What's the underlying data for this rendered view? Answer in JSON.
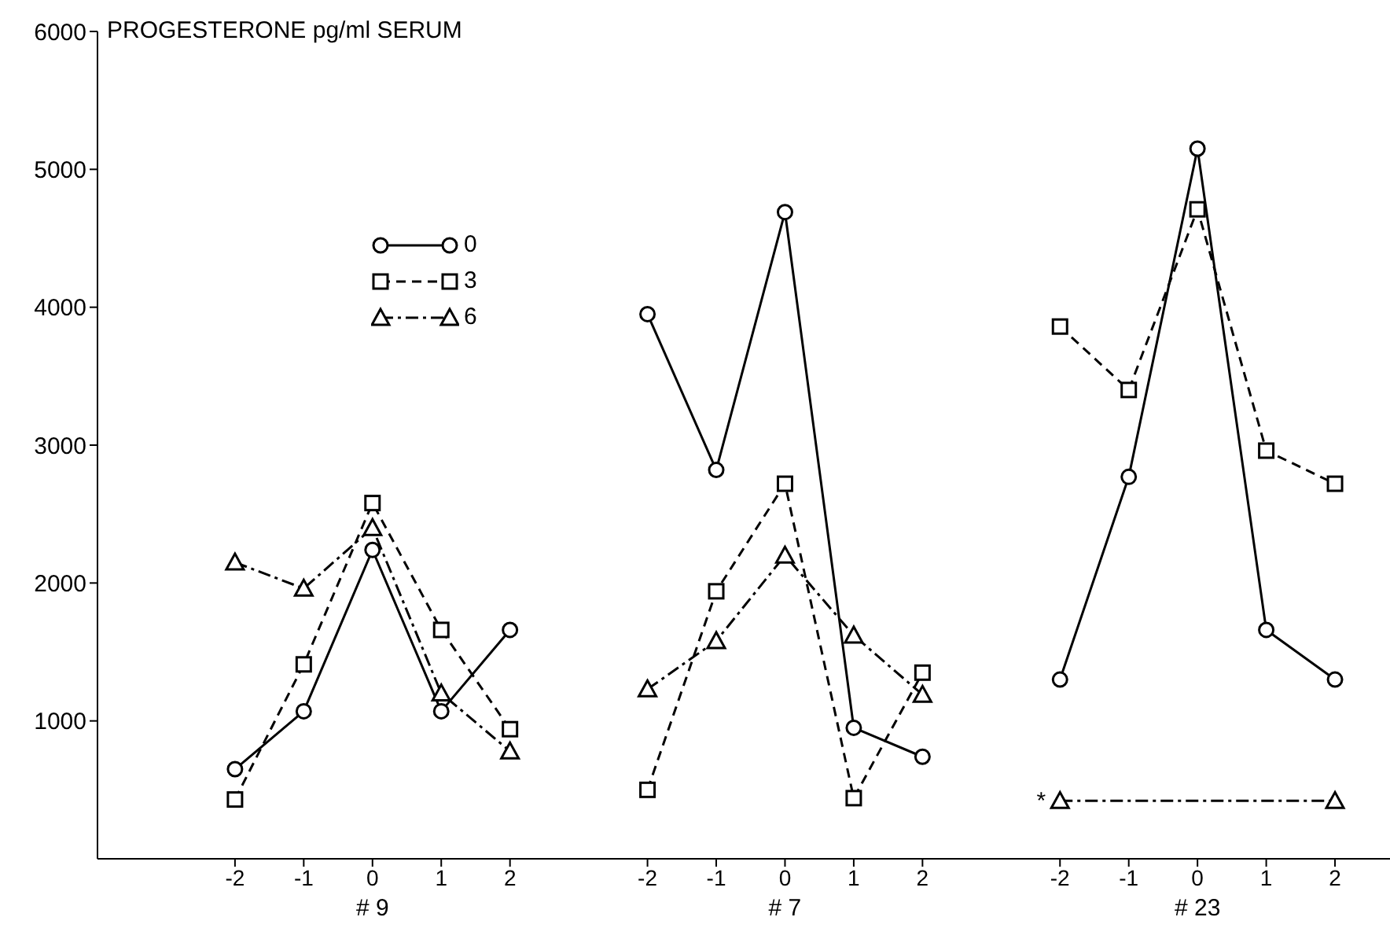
{
  "chart_data": {
    "type": "line",
    "ylabel": "PROGESTERONE pg/ml SERUM",
    "categories": [
      null,
      "-2",
      "-1",
      "0",
      "1",
      "2",
      null,
      "-2",
      "-1",
      "0",
      "1",
      "2",
      null,
      "-2",
      "-1",
      "0",
      "1",
      "2"
    ],
    "series": [
      {
        "name": "0",
        "color": "#000000",
        "marker": "circle",
        "line_style": "solid",
        "values": [
          null,
          650,
          1070,
          2240,
          1070,
          1660,
          null,
          3950,
          2820,
          4690,
          950,
          740,
          null,
          1300,
          2770,
          5150,
          1660,
          1300
        ]
      },
      {
        "name": "3",
        "color": "#000000",
        "marker": "square",
        "line_style": "dashed",
        "values": [
          null,
          430,
          1410,
          2580,
          1660,
          940,
          null,
          500,
          1940,
          2720,
          440,
          1350,
          null,
          3860,
          3400,
          4710,
          2960,
          2720
        ]
      },
      {
        "name": "6",
        "color": "#000000",
        "marker": "triangle",
        "line_style": "dashdot",
        "values": [
          null,
          2150,
          1960,
          2400,
          1200,
          780,
          null,
          1230,
          1580,
          2200,
          1620,
          1190,
          null,
          420,
          null,
          null,
          null,
          420
        ]
      }
    ],
    "ylim": [
      0,
      6000
    ],
    "yticks": [
      1000,
      2000,
      3000,
      4000,
      5000,
      6000
    ],
    "grid": false,
    "legend": "top left",
    "annotations": [
      "# 9",
      "# 7",
      "# 23",
      "*"
    ]
  }
}
